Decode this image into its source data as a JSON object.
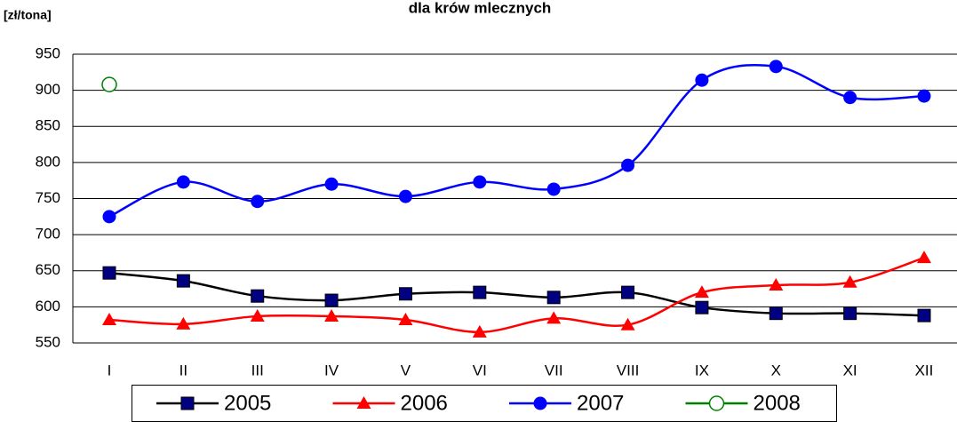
{
  "chart_data": {
    "type": "line",
    "title": "dla krów mlecznych",
    "y_label": "[zł/tona]",
    "categories": [
      "I",
      "II",
      "III",
      "IV",
      "V",
      "VI",
      "VII",
      "VIII",
      "IX",
      "X",
      "XI",
      "XII"
    ],
    "series": [
      {
        "name": "2005",
        "color": "#000000",
        "marker": "square",
        "values": [
          647,
          636,
          615,
          609,
          618,
          620,
          613,
          620,
          599,
          591,
          591,
          588
        ]
      },
      {
        "name": "2006",
        "color": "#ff0000",
        "marker": "triangle",
        "values": [
          582,
          576,
          587,
          587,
          582,
          565,
          584,
          575,
          620,
          630,
          634,
          668
        ]
      },
      {
        "name": "2007",
        "color": "#0000ff",
        "marker": "circle",
        "values": [
          725,
          773,
          746,
          770,
          753,
          773,
          763,
          796,
          914,
          933,
          890,
          892
        ]
      },
      {
        "name": "2008",
        "color": "#008000",
        "marker": "open-circle",
        "values": [
          908,
          null,
          null,
          null,
          null,
          null,
          null,
          null,
          null,
          null,
          null,
          null
        ]
      }
    ],
    "ylim": [
      550,
      950
    ],
    "yticks": [
      550,
      600,
      650,
      700,
      750,
      800,
      850,
      900,
      950
    ],
    "grid": true,
    "smooth": true,
    "legend": "bottom"
  }
}
